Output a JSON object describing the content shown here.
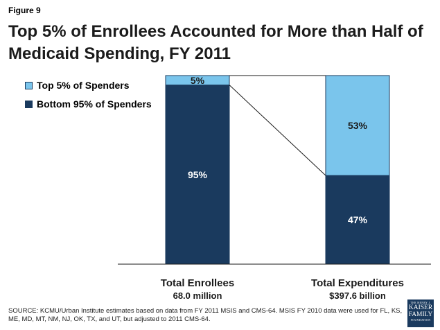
{
  "figure_label": "Figure 9",
  "title_line1": "Top 5% of Enrollees Accounted for More than Half of",
  "title_line2": "Medicaid Spending, FY 2011",
  "source": "SOURCE: KCMU/Urban Institute estimates based on data from FY 2011 MSIS and CMS-64. MSIS FY 2010 data were used for FL, KS, ME, MD, MT, NM, NJ, OK, TX, and UT, but adjusted to 2011 CMS-64.",
  "logo": {
    "line1": "THE HENRY J.",
    "line2a": "KAISER",
    "line2b": "FAMILY",
    "line3": "FOUNDATION"
  },
  "colors": {
    "dark": "#1a3a5e",
    "light": "#7ac5ec",
    "text_light": "#ffffff"
  },
  "chart_data": {
    "type": "bar",
    "stacked": true,
    "normalized_percent": true,
    "categories": [
      {
        "label": "Total Enrollees",
        "sublabel": "68.0 million"
      },
      {
        "label": "Total Expenditures",
        "sublabel": "$397.6 billion"
      }
    ],
    "series": [
      {
        "name": "Bottom 95% of Spenders",
        "color": "#1a3a5e",
        "values": [
          95,
          47
        ],
        "labels": [
          "95%",
          "47%"
        ]
      },
      {
        "name": "Top 5% of Spenders",
        "color": "#7ac5ec",
        "values": [
          5,
          53
        ],
        "labels": [
          "5%",
          "53%"
        ]
      }
    ],
    "ylim": [
      0,
      100
    ],
    "legend_position": "top-left",
    "connector_lines": true
  }
}
